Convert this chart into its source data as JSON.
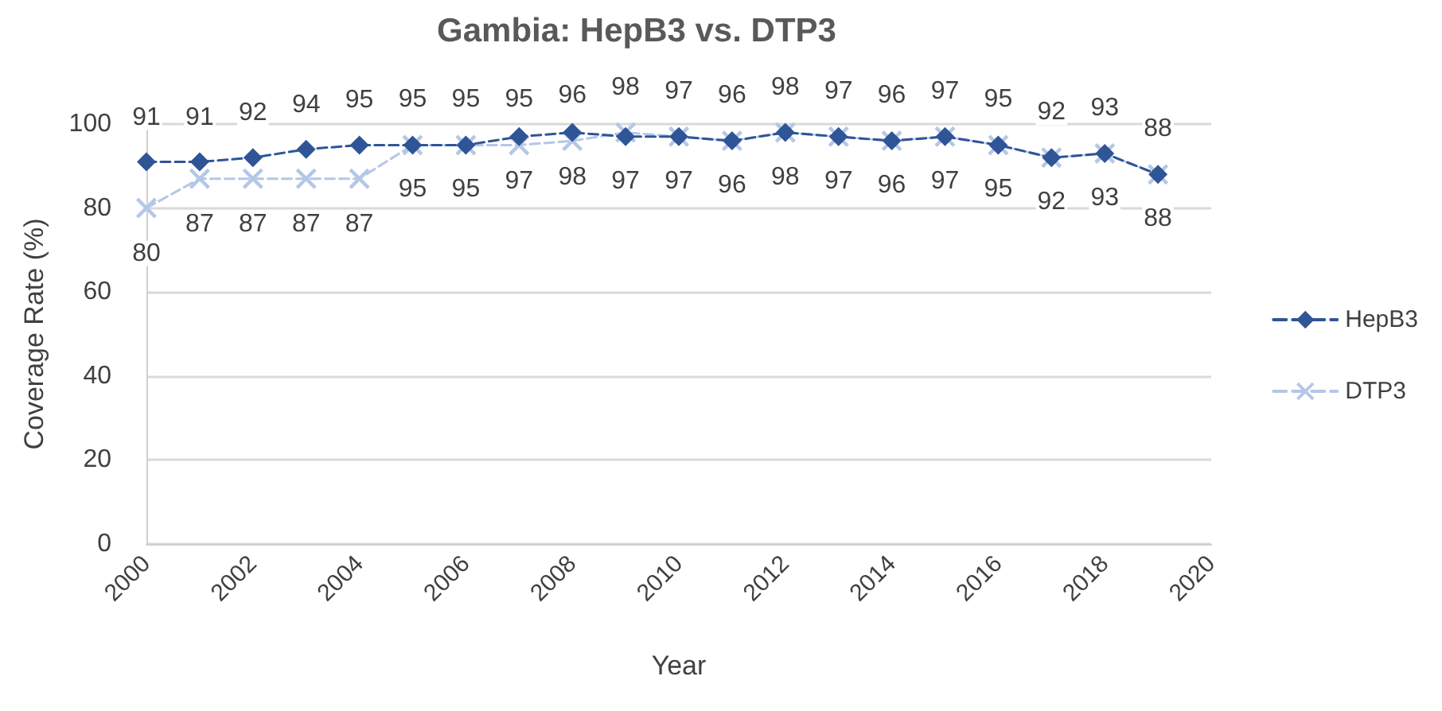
{
  "chart_data": {
    "type": "line",
    "title": "Gambia: HepB3 vs. DTP3",
    "xlabel": "Year",
    "ylabel": "Coverage Rate (%)",
    "x": [
      2000,
      2001,
      2002,
      2003,
      2004,
      2005,
      2006,
      2007,
      2008,
      2009,
      2010,
      2011,
      2012,
      2013,
      2014,
      2015,
      2016,
      2017,
      2018,
      2019
    ],
    "series": [
      {
        "name": "HepB3",
        "color": "#2f5597",
        "marker": "diamond",
        "values": [
          91,
          91,
          92,
          94,
          95,
          95,
          95,
          97,
          98,
          97,
          97,
          96,
          98,
          97,
          96,
          97,
          95,
          92,
          93,
          88
        ]
      },
      {
        "name": "DTP3",
        "color": "#b4c7e7",
        "marker": "cross",
        "values": [
          80,
          87,
          87,
          87,
          87,
          95,
          95,
          95,
          96,
          98,
          97,
          96,
          98,
          97,
          96,
          97,
          95,
          92,
          93,
          88
        ]
      }
    ],
    "xlim": [
      2000,
      2020
    ],
    "xticks": [
      2000,
      2002,
      2004,
      2006,
      2008,
      2010,
      2012,
      2014,
      2016,
      2018,
      2020
    ],
    "ylim": [
      0,
      100
    ],
    "yticks": [
      0,
      20,
      40,
      60,
      80,
      100
    ],
    "grid": "y",
    "legend": "right",
    "line_style": "dashed",
    "data_labels": true
  }
}
